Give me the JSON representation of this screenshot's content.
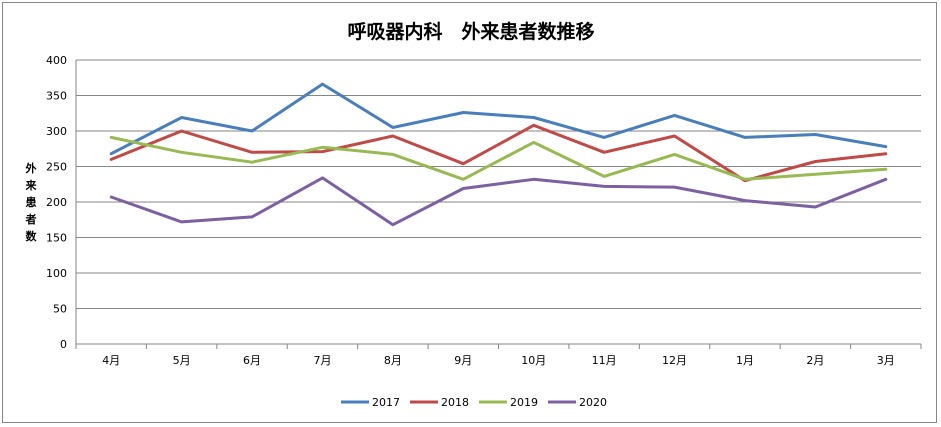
{
  "chart_data": {
    "type": "line",
    "title": "呼吸器内科　外来患者数推移",
    "xlabel": "",
    "ylabel": "外来患者数",
    "categories": [
      "4月",
      "5月",
      "6月",
      "7月",
      "8月",
      "9月",
      "10月",
      "11月",
      "12月",
      "1月",
      "2月",
      "3月"
    ],
    "ylim": [
      0,
      400
    ],
    "yticks": [
      0,
      50,
      100,
      150,
      200,
      250,
      300,
      350,
      400
    ],
    "grid": "horizontal",
    "legend_position": "bottom",
    "series": [
      {
        "name": "2017",
        "color": "#4a7ebb",
        "values": [
          268,
          319,
          300,
          366,
          305,
          326,
          319,
          291,
          322,
          291,
          295,
          278
        ]
      },
      {
        "name": "2018",
        "color": "#be4b48",
        "values": [
          260,
          300,
          270,
          271,
          293,
          254,
          308,
          270,
          293,
          230,
          257,
          268
        ]
      },
      {
        "name": "2019",
        "color": "#98b954",
        "values": [
          291,
          270,
          256,
          277,
          267,
          232,
          284,
          236,
          267,
          232,
          239,
          246
        ]
      },
      {
        "name": "2020",
        "color": "#7d60a0",
        "values": [
          207,
          172,
          179,
          234,
          168,
          219,
          232,
          222,
          221,
          202,
          193,
          232
        ]
      }
    ]
  }
}
